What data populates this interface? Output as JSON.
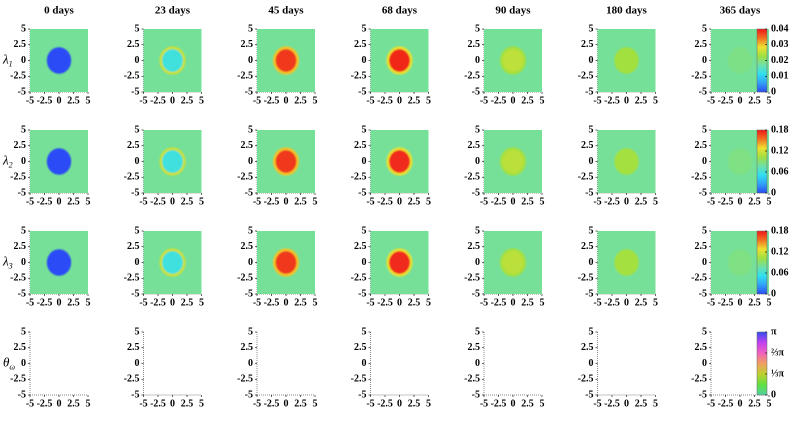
{
  "chart_data": {
    "type": "heatmap",
    "columns": [
      "0 days",
      "23 days",
      "45 days",
      "68 days",
      "90 days",
      "180 days",
      "365 days"
    ],
    "xlim": [
      -5,
      5
    ],
    "ylim": [
      -5,
      5
    ],
    "xticks": [
      -5,
      -2.5,
      0,
      2.5,
      5
    ],
    "yticks": [
      -5,
      -2.5,
      0,
      2.5,
      5
    ],
    "rows": [
      {
        "label": {
          "symbol": "λ",
          "subscript": "1"
        },
        "clim": [
          0,
          0.04
        ],
        "cticks": [
          0,
          0.01,
          0.02,
          0.03,
          0.04
        ],
        "colormap": [
          "#2a4cf5",
          "#30a0f5",
          "#30e0f0",
          "#6ee0a8",
          "#a0e040",
          "#f0e030",
          "#f07020",
          "#f01818"
        ],
        "background": 0.018,
        "center": [
          0,
          0.013,
          0.038,
          0.039,
          0.025,
          0.023,
          0.019
        ],
        "ring": [
          null,
          0.026,
          0.03,
          0.028,
          0.023,
          null,
          null
        ]
      },
      {
        "label": {
          "symbol": "λ",
          "subscript": "2"
        },
        "clim": [
          0,
          0.18
        ],
        "cticks": [
          0,
          0.06,
          0.12,
          0.18
        ],
        "colormap": [
          "#2a4cf5",
          "#30a0f5",
          "#30e0f0",
          "#6ee0a8",
          "#a0e040",
          "#f0e030",
          "#f07020",
          "#f01818"
        ],
        "background": 0.081,
        "center": [
          0,
          0.058,
          0.171,
          0.175,
          0.112,
          0.104,
          0.086
        ],
        "ring": [
          null,
          0.117,
          0.135,
          0.126,
          0.104,
          null,
          null
        ]
      },
      {
        "label": {
          "symbol": "λ",
          "subscript": "3"
        },
        "clim": [
          0,
          0.18
        ],
        "cticks": [
          0,
          0.06,
          0.12,
          0.18
        ],
        "colormap": [
          "#2a4cf5",
          "#30a0f5",
          "#30e0f0",
          "#6ee0a8",
          "#a0e040",
          "#f0e030",
          "#f07020",
          "#f01818"
        ],
        "background": 0.081,
        "center": [
          0,
          0.058,
          0.171,
          0.175,
          0.112,
          0.104,
          0.086
        ],
        "ring": [
          null,
          0.117,
          0.135,
          0.126,
          0.104,
          null,
          null
        ]
      },
      {
        "label": {
          "symbol": "θ",
          "subscript": "ω"
        },
        "clim": [
          0,
          3.14159
        ],
        "cticks": [
          0,
          {
            "value": 1.0472,
            "label": "⅓π"
          },
          {
            "value": 2.0944,
            "label": "⅔π"
          },
          {
            "value": 3.14159,
            "label": "π"
          }
        ],
        "colormap": [
          "#50d0a0",
          "#60e040",
          "#c0d030",
          "#f0a060",
          "#f060c0",
          "#c040f0",
          "#3050f0"
        ]
      }
    ]
  }
}
